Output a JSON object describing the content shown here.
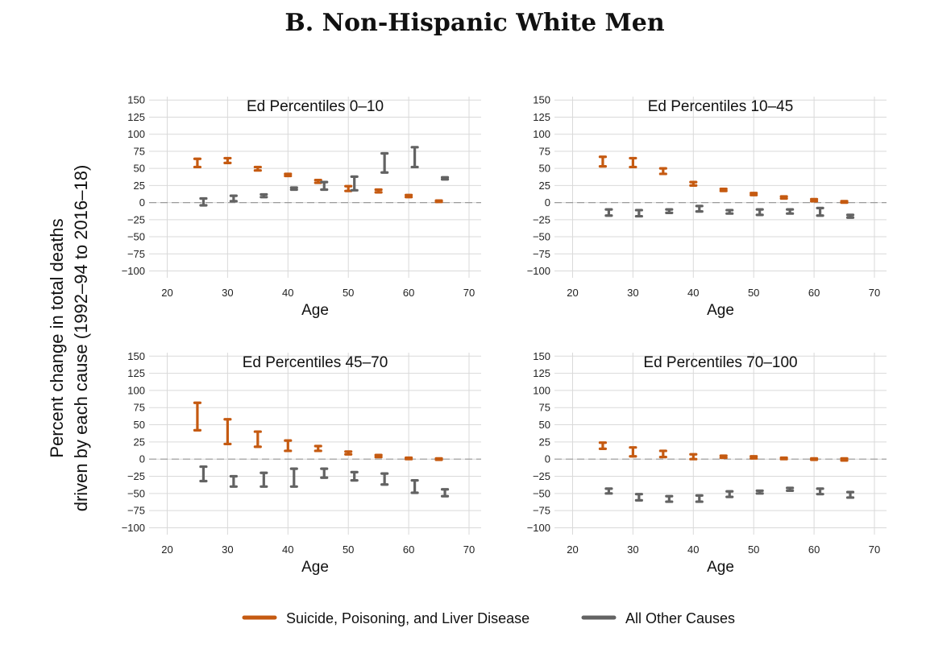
{
  "title": "B. Non-Hispanic White Men",
  "ylabel_lines": [
    "Percent change in total deaths",
    "driven by each cause (1992–94 to 2016–18)"
  ],
  "colors": {
    "suicide": "#c55a11",
    "other": "#636363"
  },
  "legend": [
    {
      "key": "suicide",
      "label": "Suicide, Poisoning, and Liver Disease",
      "color": "#c55a11"
    },
    {
      "key": "other",
      "label": "All Other Causes",
      "color": "#636363"
    }
  ],
  "chart_data": [
    {
      "type": "errorbar",
      "title": "Ed Percentiles 0–10",
      "xlabel": "Age",
      "ylabel": "",
      "xlim": [
        17,
        72
      ],
      "ylim": [
        -110,
        155
      ],
      "xticks": [
        20,
        30,
        40,
        50,
        60,
        70
      ],
      "yticks": [
        150,
        125,
        100,
        75,
        50,
        25,
        0,
        -25,
        -50,
        -75,
        -100
      ],
      "series": [
        {
          "name": "Suicide, Poisoning, and Liver Disease",
          "x": [
            25,
            30,
            35,
            40,
            45,
            50,
            55,
            60,
            65
          ],
          "low": [
            52,
            58,
            47,
            39,
            29,
            17,
            15,
            8,
            1
          ],
          "high": [
            64,
            65,
            52,
            42,
            33,
            24,
            19,
            11,
            3
          ]
        },
        {
          "name": "All Other Causes",
          "x": [
            26,
            31,
            36,
            41,
            46,
            51,
            56,
            61,
            66
          ],
          "low": [
            -4,
            2,
            8,
            19,
            19,
            18,
            44,
            52,
            34
          ],
          "high": [
            6,
            10,
            12,
            22,
            30,
            38,
            72,
            81,
            37
          ]
        }
      ]
    },
    {
      "type": "errorbar",
      "title": "Ed Percentiles 10–45",
      "xlabel": "Age",
      "ylabel": "",
      "xlim": [
        17,
        72
      ],
      "ylim": [
        -110,
        155
      ],
      "xticks": [
        20,
        30,
        40,
        50,
        60,
        70
      ],
      "yticks": [
        150,
        125,
        100,
        75,
        50,
        25,
        0,
        -25,
        -50,
        -75,
        -100
      ],
      "series": [
        {
          "name": "Suicide, Poisoning, and Liver Disease",
          "x": [
            25,
            30,
            35,
            40,
            45,
            50,
            55,
            60,
            65
          ],
          "low": [
            53,
            52,
            42,
            25,
            17,
            11,
            6,
            2,
            0
          ],
          "high": [
            67,
            65,
            50,
            30,
            20,
            14,
            9,
            5,
            2
          ]
        },
        {
          "name": "All Other Causes",
          "x": [
            26,
            31,
            36,
            41,
            46,
            51,
            56,
            61,
            66
          ],
          "low": [
            -19,
            -20,
            -15,
            -13,
            -16,
            -18,
            -16,
            -19,
            -22
          ],
          "high": [
            -10,
            -11,
            -10,
            -5,
            -11,
            -10,
            -10,
            -8,
            -18
          ]
        }
      ]
    },
    {
      "type": "errorbar",
      "title": "Ed Percentiles 45–70",
      "xlabel": "Age",
      "ylabel": "",
      "xlim": [
        17,
        72
      ],
      "ylim": [
        -110,
        155
      ],
      "xticks": [
        20,
        30,
        40,
        50,
        60,
        70
      ],
      "yticks": [
        150,
        125,
        100,
        75,
        50,
        25,
        0,
        -25,
        -50,
        -75,
        -100
      ],
      "series": [
        {
          "name": "Suicide, Poisoning, and Liver Disease",
          "x": [
            25,
            30,
            35,
            40,
            45,
            50,
            55,
            60,
            65
          ],
          "low": [
            42,
            22,
            18,
            12,
            12,
            7,
            3,
            0,
            -1
          ],
          "high": [
            82,
            58,
            40,
            27,
            19,
            11,
            6,
            2,
            1
          ]
        },
        {
          "name": "All Other Causes",
          "x": [
            26,
            31,
            36,
            41,
            46,
            51,
            56,
            61,
            66
          ],
          "low": [
            -32,
            -40,
            -40,
            -40,
            -27,
            -31,
            -37,
            -49,
            -54
          ],
          "high": [
            -11,
            -25,
            -20,
            -14,
            -14,
            -19,
            -21,
            -31,
            -44
          ]
        }
      ]
    },
    {
      "type": "errorbar",
      "title": "Ed Percentiles 70–100",
      "xlabel": "Age",
      "ylabel": "",
      "xlim": [
        17,
        72
      ],
      "ylim": [
        -110,
        155
      ],
      "xticks": [
        20,
        30,
        40,
        50,
        60,
        70
      ],
      "yticks": [
        150,
        125,
        100,
        75,
        50,
        25,
        0,
        -25,
        -50,
        -75,
        -100
      ],
      "series": [
        {
          "name": "Suicide, Poisoning, and Liver Disease",
          "x": [
            25,
            30,
            35,
            40,
            45,
            50,
            55,
            60,
            65
          ],
          "low": [
            15,
            4,
            3,
            0,
            2,
            1,
            0,
            -1,
            -2
          ],
          "high": [
            24,
            17,
            12,
            7,
            5,
            4,
            2,
            1,
            1
          ]
        },
        {
          "name": "All Other Causes",
          "x": [
            26,
            31,
            36,
            41,
            46,
            51,
            56,
            61,
            66
          ],
          "low": [
            -50,
            -60,
            -62,
            -62,
            -55,
            -50,
            -46,
            -51,
            -56
          ],
          "high": [
            -43,
            -51,
            -54,
            -53,
            -47,
            -46,
            -42,
            -43,
            -48
          ]
        }
      ]
    }
  ]
}
